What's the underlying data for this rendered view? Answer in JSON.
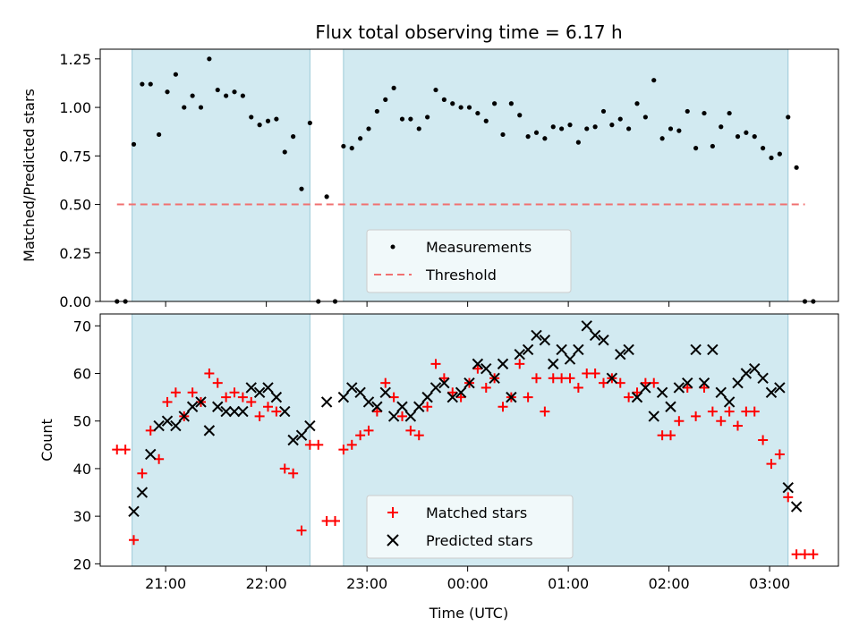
{
  "chart_data": [
    {
      "type": "scatter",
      "title": "Flux total observing time = 6.17 h",
      "ylabel": "Matched/Predicted stars",
      "xlabel": "",
      "xlim": [
        "20:21",
        "03:41"
      ],
      "ylim": [
        0,
        1.3
      ],
      "yticks": [
        "0.00",
        "0.25",
        "0.50",
        "0.75",
        "1.00",
        "1.25"
      ],
      "grid": false,
      "legend_position": "bottom-center",
      "shaded_intervals": [
        [
          "20:40",
          "22:26"
        ],
        [
          "22:46",
          "03:11"
        ]
      ],
      "threshold": {
        "name": "Threshold",
        "y": 0.5,
        "x_from": "20:31",
        "x_to": "03:21",
        "color": "#f07070"
      },
      "series": [
        {
          "name": "Measurements",
          "color": "#000000",
          "marker": "dot",
          "points": [
            [
              "20:31",
              0.0
            ],
            [
              "20:36",
              0.0
            ],
            [
              "20:41",
              0.81
            ],
            [
              "20:46",
              1.12
            ],
            [
              "20:51",
              1.12
            ],
            [
              "20:56",
              0.86
            ],
            [
              "21:01",
              1.08
            ],
            [
              "21:06",
              1.17
            ],
            [
              "21:11",
              1.0
            ],
            [
              "21:16",
              1.06
            ],
            [
              "21:21",
              1.0
            ],
            [
              "21:26",
              1.25
            ],
            [
              "21:31",
              1.09
            ],
            [
              "21:36",
              1.06
            ],
            [
              "21:41",
              1.08
            ],
            [
              "21:46",
              1.06
            ],
            [
              "21:51",
              0.95
            ],
            [
              "21:56",
              0.91
            ],
            [
              "22:01",
              0.93
            ],
            [
              "22:06",
              0.94
            ],
            [
              "22:11",
              0.77
            ],
            [
              "22:16",
              0.85
            ],
            [
              "22:21",
              0.58
            ],
            [
              "22:26",
              0.92
            ],
            [
              "22:31",
              0.0
            ],
            [
              "22:36",
              0.54
            ],
            [
              "22:41",
              0.0
            ],
            [
              "22:46",
              0.8
            ],
            [
              "22:51",
              0.79
            ],
            [
              "22:56",
              0.84
            ],
            [
              "23:01",
              0.89
            ],
            [
              "23:06",
              0.98
            ],
            [
              "23:11",
              1.04
            ],
            [
              "23:16",
              1.1
            ],
            [
              "23:21",
              0.94
            ],
            [
              "23:26",
              0.94
            ],
            [
              "23:31",
              0.89
            ],
            [
              "23:36",
              0.95
            ],
            [
              "23:41",
              1.09
            ],
            [
              "23:46",
              1.04
            ],
            [
              "23:51",
              1.02
            ],
            [
              "23:56",
              1.0
            ],
            [
              "00:01",
              1.0
            ],
            [
              "00:06",
              0.97
            ],
            [
              "00:11",
              0.93
            ],
            [
              "00:16",
              1.02
            ],
            [
              "00:21",
              0.86
            ],
            [
              "00:26",
              1.02
            ],
            [
              "00:31",
              0.96
            ],
            [
              "00:36",
              0.85
            ],
            [
              "00:41",
              0.87
            ],
            [
              "00:46",
              0.84
            ],
            [
              "00:51",
              0.9
            ],
            [
              "00:56",
              0.89
            ],
            [
              "01:01",
              0.91
            ],
            [
              "01:06",
              0.82
            ],
            [
              "01:11",
              0.89
            ],
            [
              "01:16",
              0.9
            ],
            [
              "01:21",
              0.98
            ],
            [
              "01:26",
              0.91
            ],
            [
              "01:31",
              0.94
            ],
            [
              "01:36",
              0.89
            ],
            [
              "01:41",
              1.02
            ],
            [
              "01:46",
              0.95
            ],
            [
              "01:51",
              1.14
            ],
            [
              "01:56",
              0.84
            ],
            [
              "02:01",
              0.89
            ],
            [
              "02:06",
              0.88
            ],
            [
              "02:11",
              0.98
            ],
            [
              "02:16",
              0.79
            ],
            [
              "02:21",
              0.97
            ],
            [
              "02:26",
              0.8
            ],
            [
              "02:31",
              0.9
            ],
            [
              "02:36",
              0.97
            ],
            [
              "02:41",
              0.85
            ],
            [
              "02:46",
              0.87
            ],
            [
              "02:51",
              0.85
            ],
            [
              "02:56",
              0.79
            ],
            [
              "03:01",
              0.74
            ],
            [
              "03:06",
              0.76
            ],
            [
              "03:11",
              0.95
            ],
            [
              "03:16",
              0.69
            ],
            [
              "03:21",
              0.0
            ],
            [
              "03:26",
              0.0
            ]
          ]
        }
      ]
    },
    {
      "type": "scatter",
      "title": "",
      "ylabel": "Count",
      "xlabel": "Time (UTC)",
      "xlim": [
        "20:21",
        "03:41"
      ],
      "ylim": [
        19.5,
        72.5
      ],
      "yticks": [
        "20",
        "30",
        "40",
        "50",
        "60",
        "70"
      ],
      "xticks": [
        "21:00",
        "22:00",
        "23:00",
        "00:00",
        "01:00",
        "02:00",
        "03:00"
      ],
      "grid": false,
      "legend_position": "bottom-center",
      "shaded_intervals": [
        [
          "20:40",
          "22:26"
        ],
        [
          "22:46",
          "03:11"
        ]
      ],
      "series": [
        {
          "name": "Matched stars",
          "color": "#ff0000",
          "marker": "plus",
          "points": [
            [
              "20:31",
              44
            ],
            [
              "20:36",
              44
            ],
            [
              "20:41",
              25
            ],
            [
              "20:46",
              39
            ],
            [
              "20:51",
              48
            ],
            [
              "20:56",
              42
            ],
            [
              "21:01",
              54
            ],
            [
              "21:06",
              56
            ],
            [
              "21:11",
              51
            ],
            [
              "21:16",
              56
            ],
            [
              "21:21",
              54
            ],
            [
              "21:26",
              60
            ],
            [
              "21:31",
              58
            ],
            [
              "21:36",
              55
            ],
            [
              "21:41",
              56
            ],
            [
              "21:46",
              55
            ],
            [
              "21:51",
              54
            ],
            [
              "21:56",
              51
            ],
            [
              "22:01",
              53
            ],
            [
              "22:06",
              52
            ],
            [
              "22:11",
              40
            ],
            [
              "22:16",
              39
            ],
            [
              "22:21",
              27
            ],
            [
              "22:26",
              45
            ],
            [
              "22:31",
              45
            ],
            [
              "22:36",
              29
            ],
            [
              "22:41",
              29
            ],
            [
              "22:46",
              44
            ],
            [
              "22:51",
              45
            ],
            [
              "22:56",
              47
            ],
            [
              "23:01",
              48
            ],
            [
              "23:06",
              52
            ],
            [
              "23:11",
              58
            ],
            [
              "23:16",
              55
            ],
            [
              "23:21",
              51
            ],
            [
              "23:26",
              48
            ],
            [
              "23:31",
              47
            ],
            [
              "23:36",
              53
            ],
            [
              "23:41",
              62
            ],
            [
              "23:46",
              59
            ],
            [
              "23:51",
              56
            ],
            [
              "23:56",
              55
            ],
            [
              "00:01",
              58
            ],
            [
              "00:06",
              61
            ],
            [
              "00:11",
              57
            ],
            [
              "00:16",
              59
            ],
            [
              "00:21",
              53
            ],
            [
              "00:26",
              55
            ],
            [
              "00:31",
              62
            ],
            [
              "00:36",
              55
            ],
            [
              "00:41",
              59
            ],
            [
              "00:46",
              52
            ],
            [
              "00:51",
              59
            ],
            [
              "00:56",
              59
            ],
            [
              "01:01",
              59
            ],
            [
              "01:06",
              57
            ],
            [
              "01:11",
              60
            ],
            [
              "01:16",
              60
            ],
            [
              "01:21",
              58
            ],
            [
              "01:26",
              59
            ],
            [
              "01:31",
              58
            ],
            [
              "01:36",
              55
            ],
            [
              "01:41",
              56
            ],
            [
              "01:46",
              58
            ],
            [
              "01:51",
              58
            ],
            [
              "01:56",
              47
            ],
            [
              "02:01",
              47
            ],
            [
              "02:06",
              50
            ],
            [
              "02:11",
              57
            ],
            [
              "02:16",
              51
            ],
            [
              "02:21",
              57
            ],
            [
              "02:26",
              52
            ],
            [
              "02:31",
              50
            ],
            [
              "02:36",
              52
            ],
            [
              "02:41",
              49
            ],
            [
              "02:46",
              52
            ],
            [
              "02:51",
              52
            ],
            [
              "02:56",
              46
            ],
            [
              "03:01",
              41
            ],
            [
              "03:06",
              43
            ],
            [
              "03:11",
              34
            ],
            [
              "03:16",
              22
            ],
            [
              "03:21",
              22
            ],
            [
              "03:26",
              22
            ]
          ]
        },
        {
          "name": "Predicted stars",
          "color": "#000000",
          "marker": "x",
          "points": [
            [
              "20:41",
              31
            ],
            [
              "20:46",
              35
            ],
            [
              "20:51",
              43
            ],
            [
              "20:56",
              49
            ],
            [
              "21:01",
              50
            ],
            [
              "21:06",
              49
            ],
            [
              "21:11",
              51
            ],
            [
              "21:16",
              53
            ],
            [
              "21:21",
              54
            ],
            [
              "21:26",
              48
            ],
            [
              "21:31",
              53
            ],
            [
              "21:36",
              52
            ],
            [
              "21:41",
              52
            ],
            [
              "21:46",
              52
            ],
            [
              "21:51",
              57
            ],
            [
              "21:56",
              56
            ],
            [
              "22:01",
              57
            ],
            [
              "22:06",
              55
            ],
            [
              "22:11",
              52
            ],
            [
              "22:16",
              46
            ],
            [
              "22:21",
              47
            ],
            [
              "22:26",
              49
            ],
            [
              "22:36",
              54
            ],
            [
              "22:46",
              55
            ],
            [
              "22:51",
              57
            ],
            [
              "22:56",
              56
            ],
            [
              "23:01",
              54
            ],
            [
              "23:06",
              53
            ],
            [
              "23:11",
              56
            ],
            [
              "23:16",
              51
            ],
            [
              "23:21",
              53
            ],
            [
              "23:26",
              51
            ],
            [
              "23:31",
              53
            ],
            [
              "23:36",
              55
            ],
            [
              "23:41",
              57
            ],
            [
              "23:46",
              58
            ],
            [
              "23:51",
              55
            ],
            [
              "23:56",
              56
            ],
            [
              "00:01",
              58
            ],
            [
              "00:06",
              62
            ],
            [
              "00:11",
              61
            ],
            [
              "00:16",
              59
            ],
            [
              "00:21",
              62
            ],
            [
              "00:26",
              55
            ],
            [
              "00:31",
              64
            ],
            [
              "00:36",
              65
            ],
            [
              "00:41",
              68
            ],
            [
              "00:46",
              67
            ],
            [
              "00:51",
              62
            ],
            [
              "00:56",
              65
            ],
            [
              "01:01",
              63
            ],
            [
              "01:06",
              65
            ],
            [
              "01:11",
              70
            ],
            [
              "01:16",
              68
            ],
            [
              "01:21",
              67
            ],
            [
              "01:26",
              59
            ],
            [
              "01:31",
              64
            ],
            [
              "01:36",
              65
            ],
            [
              "01:41",
              55
            ],
            [
              "01:46",
              57
            ],
            [
              "01:51",
              51
            ],
            [
              "01:56",
              56
            ],
            [
              "02:01",
              53
            ],
            [
              "02:06",
              57
            ],
            [
              "02:11",
              58
            ],
            [
              "02:16",
              65
            ],
            [
              "02:21",
              58
            ],
            [
              "02:26",
              65
            ],
            [
              "02:31",
              56
            ],
            [
              "02:36",
              54
            ],
            [
              "02:41",
              58
            ],
            [
              "02:46",
              60
            ],
            [
              "02:51",
              61
            ],
            [
              "02:56",
              59
            ],
            [
              "03:01",
              56
            ],
            [
              "03:06",
              57
            ],
            [
              "03:11",
              36
            ],
            [
              "03:16",
              32
            ]
          ]
        }
      ]
    }
  ]
}
